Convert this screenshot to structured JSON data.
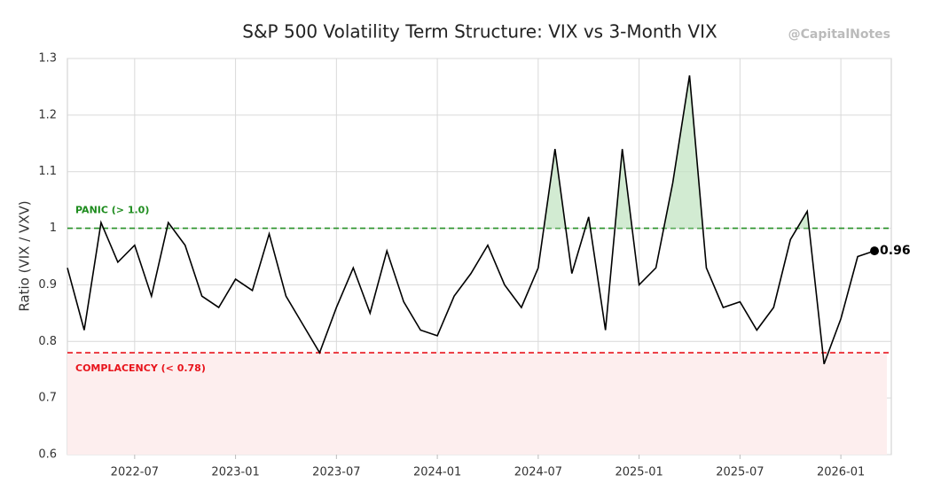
{
  "chart_data": {
    "type": "line",
    "title": "S&P 500 Volatility Term Structure: VIX vs 3-Month VIX",
    "watermark": "@CapitalNotes",
    "y_label": "Ratio (VIX / VXV)",
    "x": [
      "2022-03",
      "2022-04",
      "2022-05",
      "2022-06",
      "2022-07",
      "2022-08",
      "2022-09",
      "2022-10",
      "2022-11",
      "2022-12",
      "2023-01",
      "2023-02",
      "2023-03",
      "2023-04",
      "2023-05",
      "2023-06",
      "2023-07",
      "2023-08",
      "2023-09",
      "2023-10",
      "2023-11",
      "2023-12",
      "2024-01",
      "2024-02",
      "2024-03",
      "2024-04",
      "2024-05",
      "2024-06",
      "2024-07",
      "2024-08",
      "2024-09",
      "2024-10",
      "2024-11",
      "2024-12",
      "2025-01",
      "2025-02",
      "2025-03",
      "2025-04",
      "2025-05",
      "2025-06",
      "2025-07",
      "2025-08",
      "2025-09",
      "2025-10",
      "2025-11",
      "2025-12",
      "2026-01",
      "2026-02",
      "2026-03"
    ],
    "series": [
      {
        "name": "VIX / VXV",
        "color": "#000000",
        "values": [
          0.93,
          0.82,
          1.01,
          0.94,
          0.97,
          0.88,
          1.01,
          0.97,
          0.88,
          0.86,
          0.91,
          0.89,
          0.99,
          0.88,
          0.83,
          0.78,
          0.86,
          0.93,
          0.85,
          0.96,
          0.87,
          0.82,
          0.81,
          0.88,
          0.92,
          0.97,
          0.9,
          0.86,
          0.93,
          1.14,
          0.92,
          1.02,
          0.82,
          1.14,
          0.9,
          0.93,
          1.08,
          1.27,
          0.93,
          0.86,
          0.87,
          0.82,
          0.86,
          0.98,
          1.03,
          0.76,
          0.84,
          0.95,
          0.96
        ]
      }
    ],
    "thresholds": [
      {
        "label": "PANIC (> 1.0)",
        "value": 1.0,
        "color": "#1e8c1e"
      },
      {
        "label": "COMPLACENCY (< 0.78)",
        "value": 0.78,
        "color": "#e8141c"
      }
    ],
    "xlim": [
      "2022-03",
      "2026-04"
    ],
    "xticks": [
      "2022-07",
      "2023-01",
      "2023-07",
      "2024-01",
      "2024-07",
      "2025-01",
      "2025-07",
      "2026-01"
    ],
    "ylim": [
      0.6,
      1.3
    ],
    "yticks": [
      0.6,
      0.7,
      0.8,
      0.9,
      1.0,
      1.1,
      1.2,
      1.3
    ],
    "grid": true
  }
}
